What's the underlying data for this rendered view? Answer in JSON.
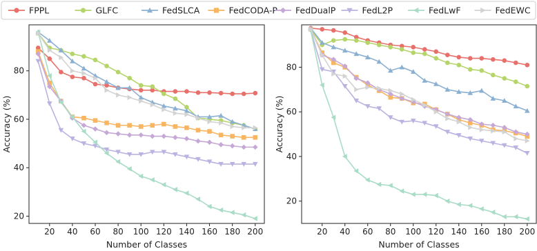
{
  "chart_data": {
    "type": "line",
    "legend": {
      "placement": "top",
      "entries": [
        {
          "name": "FPPL",
          "color": "#E8706A",
          "marker": "circle"
        },
        {
          "name": "GLFC",
          "color": "#B5D56A",
          "marker": "circle"
        },
        {
          "name": "FedSLCA",
          "color": "#8BB0D1",
          "marker": "triangle-up"
        },
        {
          "name": "FedCODA-P",
          "color": "#F8B562",
          "marker": "square"
        },
        {
          "name": "FedDualP",
          "color": "#C5A8D6",
          "marker": "diamond"
        },
        {
          "name": "FedL2P",
          "color": "#B9B3E1",
          "marker": "triangle-down"
        },
        {
          "name": "FedLwF",
          "color": "#A9DCC6",
          "marker": "triangle-left"
        },
        {
          "name": "FedEWC",
          "color": "#D3D3D3",
          "marker": "triangle-right"
        }
      ]
    },
    "panels": [
      {
        "xlabel": "Number of Classes",
        "ylabel": "Accuracy (%)",
        "xlim": [
          2,
          208
        ],
        "ylim": [
          17,
          99
        ],
        "xticks": [
          20,
          40,
          60,
          80,
          100,
          120,
          140,
          160,
          180,
          200
        ],
        "yticks": [
          20,
          40,
          60,
          80
        ],
        "x": [
          10,
          20,
          30,
          40,
          50,
          60,
          70,
          80,
          90,
          100,
          110,
          120,
          130,
          140,
          150,
          160,
          170,
          180,
          190,
          200
        ],
        "series": [
          {
            "name": "FPPL",
            "values": [
              89.5,
              85,
              79.5,
              77.5,
              77,
              74.5,
              74,
              73,
              72.5,
              72,
              72,
              71.5,
              71.5,
              71.5,
              71,
              71,
              70.8,
              70.5,
              70.5,
              70.8
            ]
          },
          {
            "name": "GLFC",
            "values": [
              95.5,
              89.5,
              88.5,
              87,
              86,
              84.5,
              82,
              79.5,
              77,
              74,
              73.5,
              70.5,
              68.5,
              65,
              60.5,
              60,
              59.5,
              58.5,
              57.5,
              56
            ]
          },
          {
            "name": "FedSLCA",
            "values": [
              96,
              92.5,
              88.5,
              84,
              81,
              78,
              75.5,
              73,
              73,
              69,
              67,
              65.5,
              64.5,
              63.5,
              61,
              61,
              61.5,
              59,
              57.5,
              56
            ]
          },
          {
            "name": "FedCODA-P",
            "values": [
              88,
              75,
              67.5,
              61,
              60.5,
              59.5,
              58.5,
              57.5,
              57.5,
              57,
              57.5,
              58,
              57,
              56.5,
              55.5,
              55,
              53.5,
              53,
              52.5,
              52.5
            ]
          },
          {
            "name": "FedDualP",
            "values": [
              87,
              73.5,
              67.5,
              60.5,
              57.5,
              56,
              54.5,
              54,
              53.5,
              53.5,
              53,
              53,
              52.5,
              52,
              51,
              50.5,
              49.5,
              49,
              48.5,
              48.5
            ]
          },
          {
            "name": "FedL2P",
            "values": [
              84,
              66.5,
              55.5,
              52,
              50,
              49,
              47.5,
              46.5,
              45.5,
              45.5,
              46.5,
              46.5,
              45.5,
              44.5,
              43.5,
              42.5,
              41.5,
              41.5,
              41.5,
              41.5
            ]
          },
          {
            "name": "FedLwF",
            "values": [
              96,
              78,
              67,
              61,
              55,
              50.5,
              46,
              42.5,
              39.5,
              36.5,
              35,
              33,
              31,
              29.5,
              27,
              24,
              22.5,
              21.5,
              20.5,
              19
            ]
          },
          {
            "name": "FedEWC",
            "values": [
              95.5,
              88.5,
              85.5,
              80,
              79,
              77,
              72,
              70,
              69,
              67.5,
              66,
              64,
              62.5,
              62,
              60.5,
              59,
              58.5,
              57,
              56.5,
              56.5
            ]
          }
        ]
      },
      {
        "xlabel": "Number of Classes",
        "ylabel": "Accuracy (%)",
        "xlim": [
          2,
          208
        ],
        "ylim": [
          10,
          99
        ],
        "xticks": [
          20,
          40,
          60,
          80,
          100,
          120,
          140,
          160,
          180,
          200
        ],
        "yticks": [
          20,
          40,
          60,
          80
        ],
        "x": [
          10,
          20,
          30,
          40,
          50,
          60,
          70,
          80,
          90,
          100,
          110,
          120,
          130,
          140,
          150,
          160,
          170,
          180,
          190,
          200
        ],
        "series": [
          {
            "name": "FPPL",
            "values": [
              97.5,
              97,
              96.5,
              95.5,
              93.5,
              92,
              91,
              90,
              89.5,
              89,
              88,
              87,
              85.5,
              84.5,
              84,
              84,
              83.5,
              83,
              82,
              81
            ]
          },
          {
            "name": "GLFC",
            "values": [
              97,
              90,
              92,
              92.5,
              92,
              91,
              90,
              89,
              88,
              86.5,
              86,
              84,
              82,
              81,
              79,
              78.5,
              76.5,
              75,
              73.5,
              71.5
            ]
          },
          {
            "name": "FedSLCA",
            "values": [
              97.5,
              91,
              89,
              87.5,
              86,
              84.5,
              82.5,
              78.5,
              80,
              78,
              74,
              72.5,
              70,
              69,
              68.5,
              69.5,
              66,
              65,
              62.5,
              60.5
            ]
          },
          {
            "name": "FedCODA-P",
            "values": [
              97,
              86.5,
              82,
              80,
              75.5,
              72,
              69.5,
              66.5,
              66,
              64,
              63.5,
              61,
              59,
              56.5,
              55,
              54,
              52,
              51.5,
              50.5,
              49
            ]
          },
          {
            "name": "FedDualP",
            "values": [
              97,
              85.5,
              83.5,
              80.5,
              75,
              73,
              70,
              68,
              66,
              64.5,
              62.5,
              61,
              59,
              57.5,
              56.5,
              54.5,
              54,
              53,
              51,
              50
            ]
          },
          {
            "name": "FedL2P",
            "values": [
              96.5,
              79,
              78,
              71.5,
              65,
              62.5,
              61.5,
              57.5,
              55.5,
              56,
              55,
              53.5,
              51,
              49.5,
              48,
              47,
              46,
              45,
              44,
              41.5
            ]
          },
          {
            "name": "FedLwF",
            "values": [
              96.5,
              72,
              57.5,
              40,
              33.5,
              29.5,
              27.5,
              27,
              24.5,
              23,
              23,
              22.5,
              20,
              18.5,
              18,
              16.5,
              15,
              13,
              13,
              12
            ]
          },
          {
            "name": "FedEWC",
            "values": [
              97,
              85.5,
              77,
              76,
              70,
              71,
              70.5,
              69.5,
              68,
              65.5,
              63,
              60,
              57,
              55.5,
              53,
              52,
              51.5,
              51,
              48,
              47
            ]
          }
        ]
      }
    ]
  }
}
